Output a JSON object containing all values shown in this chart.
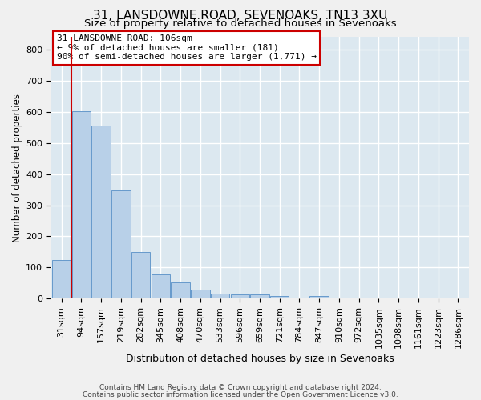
{
  "title": "31, LANSDOWNE ROAD, SEVENOAKS, TN13 3XU",
  "subtitle": "Size of property relative to detached houses in Sevenoaks",
  "xlabel": "Distribution of detached houses by size in Sevenoaks",
  "ylabel": "Number of detached properties",
  "bins": [
    "31sqm",
    "94sqm",
    "157sqm",
    "219sqm",
    "282sqm",
    "345sqm",
    "408sqm",
    "470sqm",
    "533sqm",
    "596sqm",
    "659sqm",
    "721sqm",
    "784sqm",
    "847sqm",
    "910sqm",
    "972sqm",
    "1035sqm",
    "1098sqm",
    "1161sqm",
    "1223sqm",
    "1286sqm"
  ],
  "bar_heights": [
    125,
    603,
    557,
    348,
    150,
    78,
    53,
    30,
    15,
    13,
    13,
    8,
    0,
    8,
    0,
    0,
    0,
    0,
    0,
    0,
    0
  ],
  "bar_color": "#b8d0e8",
  "bar_edge_color": "#6699cc",
  "red_line_color": "#cc0000",
  "annotation_line1": "31 LANSDOWNE ROAD: 106sqm",
  "annotation_line2": "← 9% of detached houses are smaller (181)",
  "annotation_line3": "90% of semi-detached houses are larger (1,771) →",
  "annotation_box_facecolor": "#ffffff",
  "annotation_box_edgecolor": "#cc0000",
  "ylim": [
    0,
    840
  ],
  "yticks": [
    0,
    100,
    200,
    300,
    400,
    500,
    600,
    700,
    800
  ],
  "plot_bg": "#dce8f0",
  "fig_bg": "#f0f0f0",
  "grid_color": "#ffffff",
  "footer_line1": "Contains HM Land Registry data © Crown copyright and database right 2024.",
  "footer_line2": "Contains public sector information licensed under the Open Government Licence v3.0.",
  "title_fontsize": 11,
  "subtitle_fontsize": 9.5,
  "xlabel_fontsize": 9,
  "ylabel_fontsize": 8.5,
  "tick_fontsize": 8,
  "annot_fontsize": 8,
  "red_line_x": 0.5
}
